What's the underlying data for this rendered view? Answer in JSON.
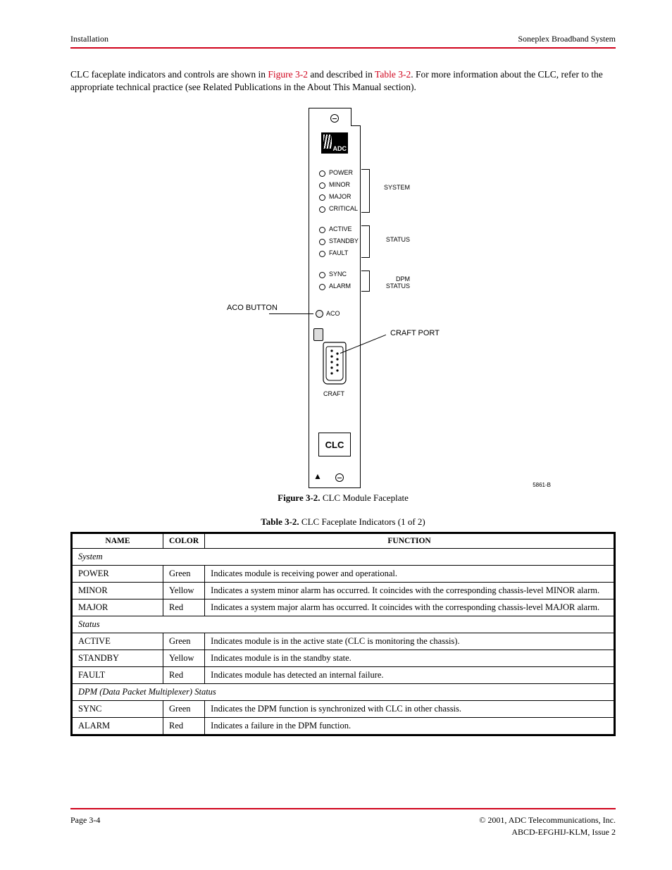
{
  "header": {
    "left": "Installation",
    "right": "Soneplex Broadband System"
  },
  "intro": {
    "text_before_link": "CLC faceplate indicators and controls are shown in ",
    "link_text": "Figure 3-2",
    "text_after_link": " and described in ",
    "table_link": "Table 3-2",
    "tail": ". For more information about the CLC, refer to the appropriate technical practice (see Related Publications in the About This Manual section)."
  },
  "figure": {
    "number": "Figure 3-2.",
    "title": "CLC Module Faceplate",
    "logo": "ADC",
    "clc_label": "CLC",
    "groups": [
      {
        "bracket_label": "SYSTEM",
        "leds": [
          "POWER",
          "MINOR",
          "MAJOR",
          "CRITICAL"
        ]
      },
      {
        "bracket_label": "STATUS",
        "leds": [
          "ACTIVE",
          "STANDBY",
          "FAULT"
        ]
      },
      {
        "bracket_label": "DPM STATUS",
        "leds": [
          "SYNC",
          "ALARM"
        ]
      }
    ],
    "aco_label": "ACO",
    "craft_label": "CRAFT",
    "callouts": {
      "aco": "ACO BUTTON",
      "craft": "CRAFT PORT"
    },
    "small_note": "5861-B"
  },
  "table": {
    "number": "Table 3-2.",
    "title": "CLC Faceplate Indicators (1 of 2)",
    "columns": [
      "NAME",
      "COLOR",
      "FUNCTION"
    ],
    "sections": [
      {
        "heading": "System",
        "rows": [
          {
            "name": "POWER",
            "color": "Green",
            "fn": "Indicates module is receiving power and operational."
          },
          {
            "name": "MINOR",
            "color": "Yellow",
            "fn": "Indicates a system minor alarm has occurred. It coincides with the corresponding chassis-level MINOR alarm."
          },
          {
            "name": "MAJOR",
            "color": "Red",
            "fn": "Indicates a system major alarm has occurred. It coincides with the corresponding chassis-level MAJOR alarm."
          }
        ]
      },
      {
        "heading": "Status",
        "rows": [
          {
            "name": "ACTIVE",
            "color": "Green",
            "fn": "Indicates module is in the active state (CLC is monitoring the chassis)."
          },
          {
            "name": "STANDBY",
            "color": "Yellow",
            "fn": "Indicates module is in the standby state."
          },
          {
            "name": "FAULT",
            "color": "Red",
            "fn": "Indicates module has detected an internal failure."
          }
        ]
      },
      {
        "heading": "DPM (Data Packet Multiplexer) Status",
        "rows": [
          {
            "name": "SYNC",
            "color": "Green",
            "fn": "Indicates the DPM function is synchronized with CLC in other chassis."
          },
          {
            "name": "ALARM",
            "color": "Red",
            "fn": "Indicates a failure in the DPM function."
          }
        ]
      }
    ]
  },
  "footer": {
    "left": "Page 3-4",
    "right": "© 2001, ADC Telecommunications, Inc.",
    "center": "ABCD-EFGHIJ-KLM, Issue 2"
  }
}
